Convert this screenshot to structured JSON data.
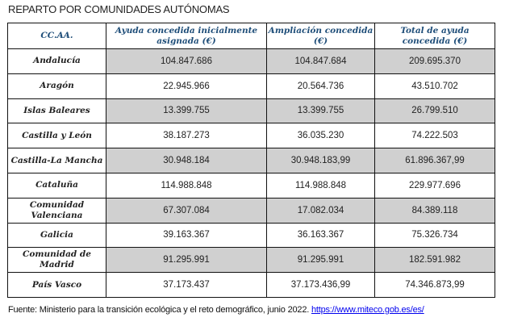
{
  "title": "REPARTO POR COMUNIDADES AUTÓNOMAS",
  "table": {
    "headers": [
      "CC.AA.",
      "Ayuda concedida inicialmente asignada (€)",
      "Ampliación concedida (€)",
      "Total de ayuda concedida (€)"
    ],
    "rows": [
      [
        "Andalucía",
        "104.847.686",
        "104.847.684",
        "209.695.370"
      ],
      [
        "Aragón",
        "22.945.966",
        "20.564.736",
        "43.510.702"
      ],
      [
        "Islas Baleares",
        "13.399.755",
        "13.399.755",
        "26.799.510"
      ],
      [
        "Castilla y León",
        "38.187.273",
        "36.035.230",
        "74.222.503"
      ],
      [
        "Castilla-La Mancha",
        "30.948.184",
        "30.948.183,99",
        "61.896.367,99"
      ],
      [
        "Cataluña",
        "114.988.848",
        "114.988.848",
        "229.977.696"
      ],
      [
        "Comunidad Valenciana",
        "67.307.084",
        "17.082.034",
        "84.389.118"
      ],
      [
        "Galicia",
        "39.163.367",
        "36.163.367",
        "75.326.734"
      ],
      [
        "Comunidad de Madrid",
        "91.295.991",
        "91.295.991",
        "182.591.982"
      ],
      [
        "País Vasco",
        "37.173.437",
        "37.173.436,99",
        "74.346.873,99"
      ]
    ],
    "shaded_rows": [
      0,
      2,
      4,
      6,
      8
    ],
    "header_color": "#1f4e79",
    "shade_color": "#d0d0d0"
  },
  "source": {
    "text": "Fuente: Ministerio para la transición ecológica y el reto demográfico, junio 2022. ",
    "link": "https://www.miteco.gob.es/es/"
  }
}
